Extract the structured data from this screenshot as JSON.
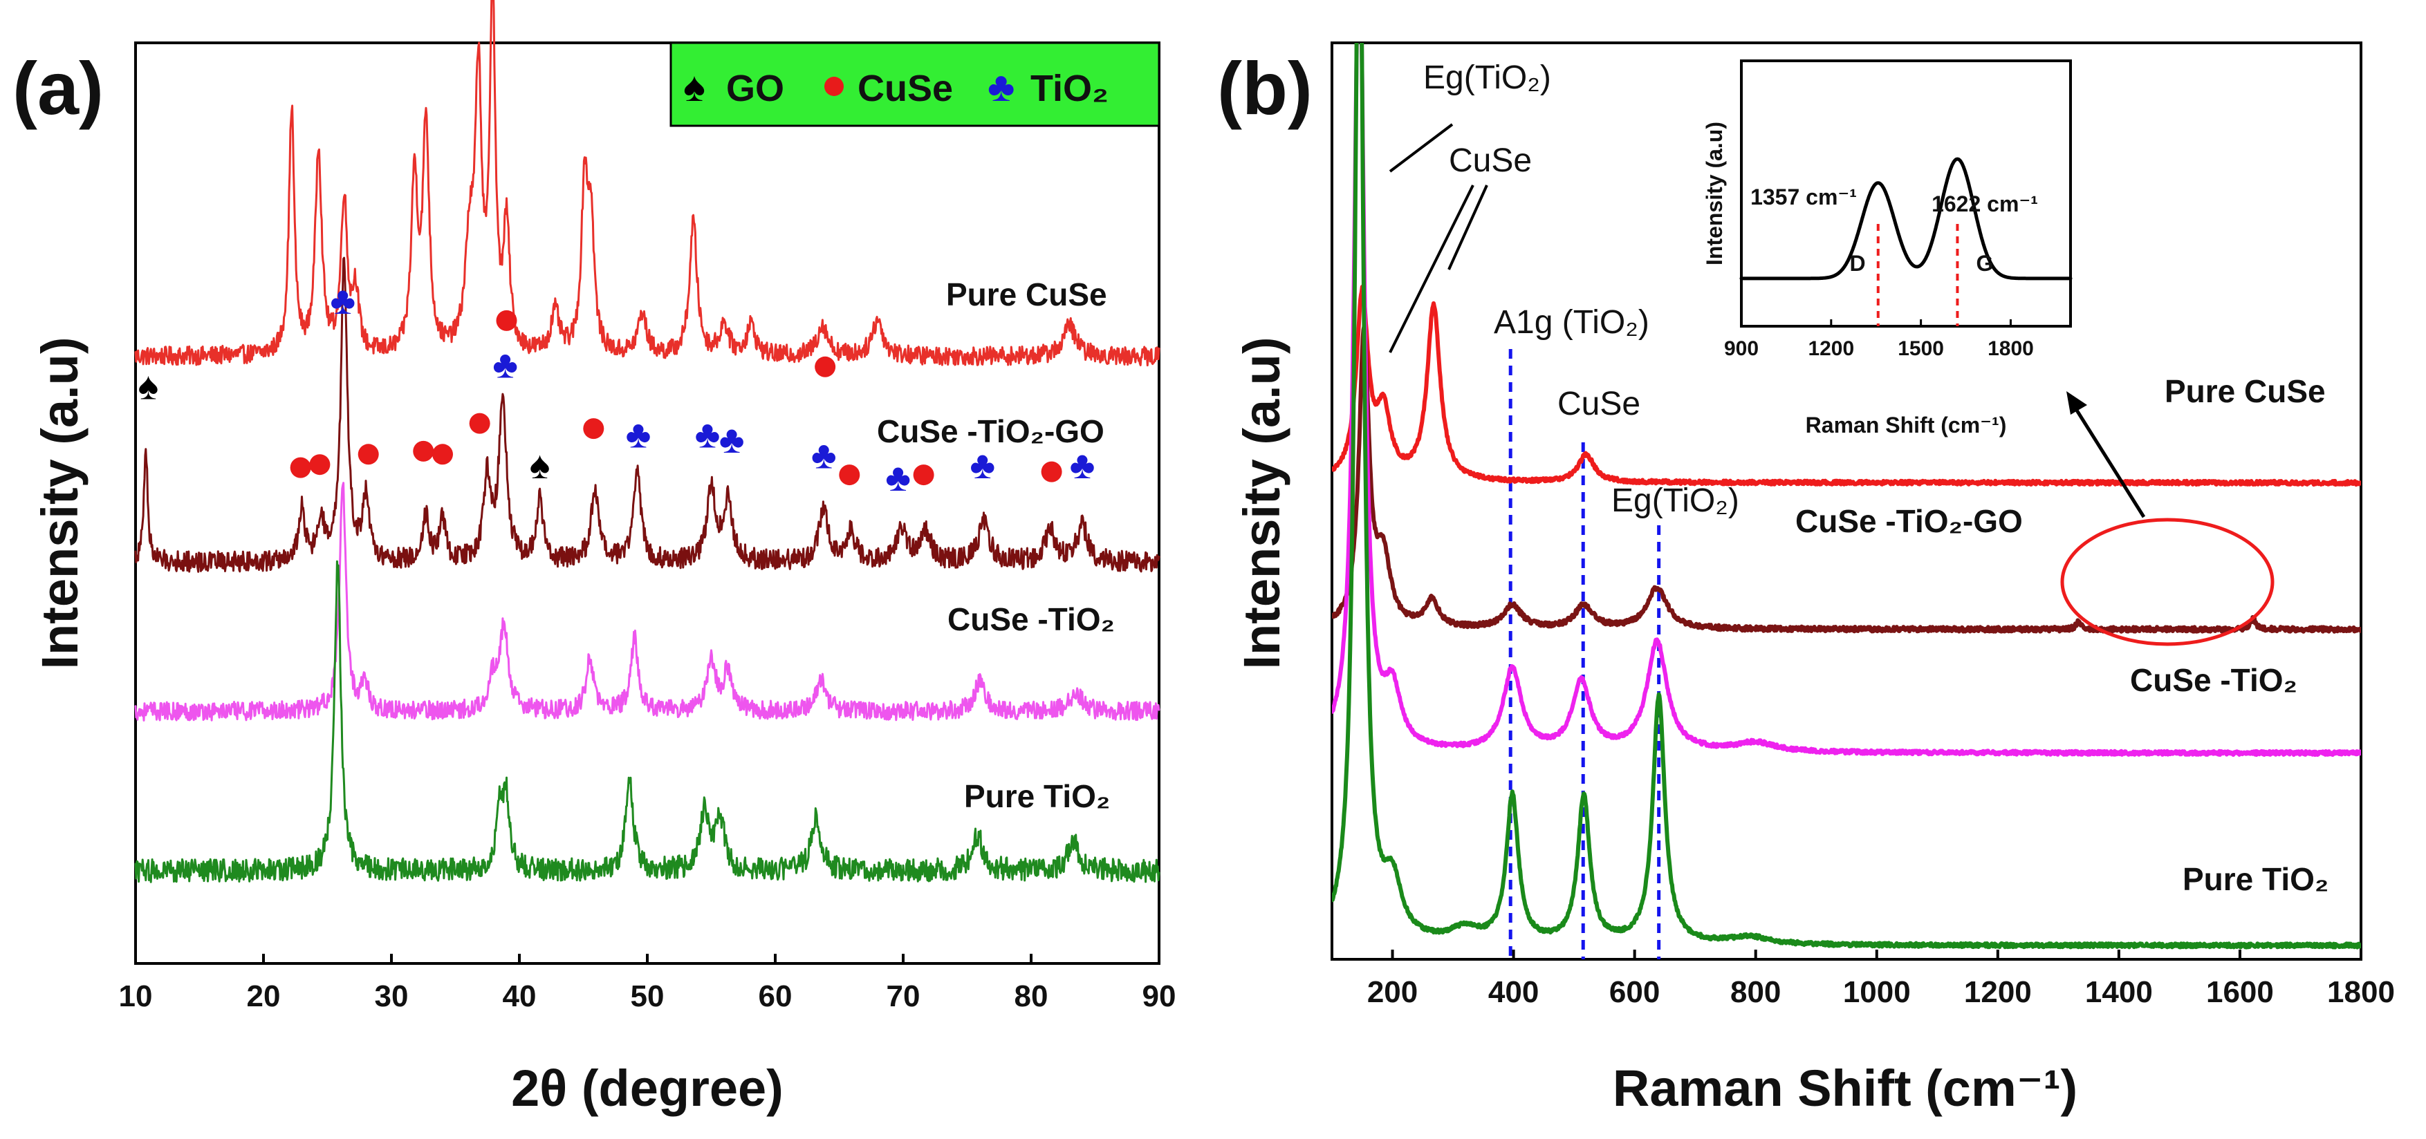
{
  "chart_data": [
    {
      "panel": "(a)",
      "type": "line",
      "xlabel": "2θ (degree)",
      "ylabel": "Intensity (a.u)",
      "xlim": [
        10,
        90
      ],
      "xticks": [
        10,
        20,
        30,
        40,
        50,
        60,
        70,
        80,
        90
      ],
      "yticks_shown": false,
      "legend": {
        "placement": "top-right",
        "background": "#33ee33",
        "entries": [
          {
            "symbol": "♠",
            "label": "GO",
            "color": "#000000"
          },
          {
            "symbol": "●",
            "label": "CuSe",
            "color": "#e81b1b"
          },
          {
            "symbol": "♣",
            "label": "TiO₂",
            "color": "#1a1ad6"
          }
        ]
      },
      "series": [
        {
          "name": "Pure CuSe",
          "color": "#e8302a",
          "baseline": 5.0,
          "noise": 0.09,
          "peaks": [
            [
              22.2,
              2.4,
              0.25
            ],
            [
              24.3,
              2.0,
              0.3
            ],
            [
              26.3,
              1.5,
              0.3
            ],
            [
              27.2,
              0.6,
              0.3
            ],
            [
              31.8,
              1.7,
              0.3
            ],
            [
              32.7,
              2.2,
              0.3
            ],
            [
              36.1,
              1.0,
              0.4
            ],
            [
              36.8,
              2.6,
              0.3
            ],
            [
              37.9,
              3.5,
              0.25
            ],
            [
              39.0,
              1.2,
              0.3
            ],
            [
              42.8,
              0.4,
              0.4
            ],
            [
              45.1,
              1.6,
              0.3
            ],
            [
              45.6,
              1.2,
              0.3
            ],
            [
              49.6,
              0.4,
              0.4
            ],
            [
              53.6,
              1.3,
              0.35
            ],
            [
              56.0,
              0.3,
              0.4
            ],
            [
              58.1,
              0.3,
              0.4
            ],
            [
              63.7,
              0.3,
              0.5
            ],
            [
              68.0,
              0.35,
              0.5
            ],
            [
              83.0,
              0.3,
              0.6
            ]
          ]
        },
        {
          "name": "CuSe -TiO₂-GO",
          "color": "#7a1010",
          "baseline": 3.0,
          "noise": 0.1,
          "peaks": [
            [
              10.8,
              1.1,
              0.18
            ],
            [
              23.0,
              0.5,
              0.3
            ],
            [
              24.5,
              0.4,
              0.3
            ],
            [
              26.3,
              2.9,
              0.3
            ],
            [
              28.0,
              0.6,
              0.3
            ],
            [
              32.7,
              0.45,
              0.3
            ],
            [
              34.0,
              0.4,
              0.3
            ],
            [
              37.5,
              0.8,
              0.35
            ],
            [
              38.7,
              1.6,
              0.35
            ],
            [
              41.6,
              0.6,
              0.3
            ],
            [
              45.9,
              0.7,
              0.35
            ],
            [
              49.2,
              0.9,
              0.35
            ],
            [
              55.0,
              0.7,
              0.4
            ],
            [
              56.3,
              0.6,
              0.4
            ],
            [
              63.8,
              0.5,
              0.45
            ],
            [
              65.9,
              0.3,
              0.4
            ],
            [
              69.9,
              0.3,
              0.5
            ],
            [
              71.7,
              0.3,
              0.5
            ],
            [
              76.3,
              0.4,
              0.5
            ],
            [
              81.5,
              0.3,
              0.5
            ],
            [
              84.0,
              0.35,
              0.5
            ]
          ]
        },
        {
          "name": "CuSe -TiO₂",
          "color": "#ee55ee",
          "baseline": 1.55,
          "noise": 0.09,
          "peaks": [
            [
              26.2,
              2.2,
              0.3
            ],
            [
              27.9,
              0.3,
              0.3
            ],
            [
              37.9,
              0.3,
              0.4
            ],
            [
              38.8,
              0.8,
              0.4
            ],
            [
              45.5,
              0.5,
              0.35
            ],
            [
              49.0,
              0.7,
              0.35
            ],
            [
              55.0,
              0.5,
              0.4
            ],
            [
              56.3,
              0.4,
              0.4
            ],
            [
              63.6,
              0.3,
              0.45
            ],
            [
              76.0,
              0.3,
              0.5
            ],
            [
              83.5,
              0.2,
              0.5
            ]
          ]
        },
        {
          "name": "Pure TiO₂",
          "color": "#1f8a1f",
          "baseline": 0.0,
          "noise": 0.11,
          "peaks": [
            [
              25.8,
              3.0,
              0.3
            ],
            [
              38.5,
              0.6,
              0.35
            ],
            [
              39.0,
              0.6,
              0.3
            ],
            [
              48.6,
              0.9,
              0.35
            ],
            [
              54.5,
              0.6,
              0.4
            ],
            [
              55.7,
              0.5,
              0.4
            ],
            [
              63.2,
              0.5,
              0.45
            ],
            [
              75.8,
              0.35,
              0.5
            ],
            [
              83.3,
              0.3,
              0.5
            ]
          ]
        }
      ],
      "series_labels": [
        "Pure CuSe",
        "CuSe -TiO₂-GO",
        "CuSe -TiO₂",
        "Pure TiO₂"
      ],
      "markers": [
        {
          "type": "spade",
          "x": 11.0,
          "y": 4.72
        },
        {
          "type": "spade",
          "x": 41.6,
          "y": 3.95
        },
        {
          "type": "dot",
          "x": 22.9,
          "y": 3.92
        },
        {
          "type": "dot",
          "x": 24.4,
          "y": 3.95
        },
        {
          "type": "dot",
          "x": 28.2,
          "y": 4.05
        },
        {
          "type": "dot",
          "x": 32.5,
          "y": 4.08
        },
        {
          "type": "dot",
          "x": 34.0,
          "y": 4.05
        },
        {
          "type": "dot",
          "x": 36.9,
          "y": 4.35
        },
        {
          "type": "dot",
          "x": 39.0,
          "y": 5.35
        },
        {
          "type": "dot",
          "x": 45.8,
          "y": 4.3
        },
        {
          "type": "dot",
          "x": 63.9,
          "y": 4.9
        },
        {
          "type": "dot",
          "x": 65.8,
          "y": 3.85
        },
        {
          "type": "dot",
          "x": 71.6,
          "y": 3.85
        },
        {
          "type": "dot",
          "x": 81.6,
          "y": 3.88
        },
        {
          "type": "club",
          "x": 26.2,
          "y": 5.55
        },
        {
          "type": "club",
          "x": 38.9,
          "y": 4.93
        },
        {
          "type": "club",
          "x": 49.3,
          "y": 4.25
        },
        {
          "type": "club",
          "x": 54.7,
          "y": 4.25
        },
        {
          "type": "club",
          "x": 56.6,
          "y": 4.2
        },
        {
          "type": "club",
          "x": 63.8,
          "y": 4.05
        },
        {
          "type": "club",
          "x": 69.6,
          "y": 3.83
        },
        {
          "type": "club",
          "x": 76.2,
          "y": 3.95
        },
        {
          "type": "club",
          "x": 84.0,
          "y": 3.95
        }
      ],
      "ylim": [
        -0.9,
        8.05
      ]
    },
    {
      "panel": "(b)",
      "type": "line",
      "xlabel": "Raman Shift (cm⁻¹)",
      "ylabel": "Intensity (a.u)",
      "xlim": [
        100,
        1800
      ],
      "xticks": [
        200,
        400,
        600,
        800,
        1000,
        1200,
        1400,
        1600,
        1800
      ],
      "yticks_shown": false,
      "ylim": [
        0,
        10
      ],
      "series": [
        {
          "name": "Pure CuSe",
          "color": "#ee1c1c",
          "baseline": 5.2,
          "noise": 0.02,
          "peaks": [
            [
              150,
              2.0,
              12
            ],
            [
              185,
              0.7,
              14
            ],
            [
              268,
              1.9,
              13
            ],
            [
              520,
              0.3,
              16
            ]
          ]
        },
        {
          "name": "CuSe -TiO₂-GO",
          "color": "#7a1414",
          "baseline": 3.6,
          "noise": 0.025,
          "peaks": [
            [
              153,
              3.2,
              10
            ],
            [
              185,
              0.7,
              14
            ],
            [
              265,
              0.3,
              13
            ],
            [
              398,
              0.25,
              18
            ],
            [
              516,
              0.25,
              18
            ],
            [
              637,
              0.45,
              20
            ],
            [
              1333,
              0.08,
              5
            ],
            [
              1622,
              0.12,
              5
            ]
          ]
        },
        {
          "name": "CuSe -TiO₂",
          "color": "#ee22ee",
          "baseline": 2.25,
          "noise": 0.02,
          "peaks": [
            [
              145,
              9.0,
              10
            ],
            [
              200,
              0.6,
              16
            ],
            [
              398,
              0.9,
              18
            ],
            [
              512,
              0.75,
              18
            ],
            [
              637,
              1.2,
              20
            ],
            [
              800,
              0.1,
              40
            ]
          ]
        },
        {
          "name": "Pure TiO₂",
          "color": "#1a8a1a",
          "baseline": 0.15,
          "noise": 0.02,
          "peaks": [
            [
              145,
              12.0,
              9
            ],
            [
              200,
              0.6,
              18
            ],
            [
              320,
              0.15,
              30
            ],
            [
              398,
              1.6,
              12
            ],
            [
              516,
              1.6,
              12
            ],
            [
              640,
              2.7,
              12
            ],
            [
              790,
              0.08,
              40
            ]
          ]
        }
      ],
      "series_labels": [
        "Pure CuSe",
        "CuSe -TiO₂-GO",
        "CuSe -TiO₂",
        "Pure TiO₂"
      ],
      "annotations": {
        "eg1": "Eg(TiO₂)",
        "cuse1": "CuSe",
        "a1g": "A1g (TiO₂)",
        "cuse2": "CuSe",
        "eg2": "Eg(TiO₂)"
      },
      "reference_lines_x": [
        395,
        515,
        640
      ],
      "inset": {
        "xlabel": "Raman Shift (cm⁻¹)",
        "ylabel": "Intensity (a.u)",
        "xlim": [
          900,
          2000
        ],
        "xticks": [
          900,
          1200,
          1500,
          1800
        ],
        "peaks": [
          {
            "label": "D",
            "position": 1357,
            "position_label": "1357 cm⁻¹"
          },
          {
            "label": "G",
            "position": 1622,
            "position_label": "1622 cm⁻¹"
          }
        ],
        "ylim": [
          0,
          10
        ]
      }
    }
  ]
}
